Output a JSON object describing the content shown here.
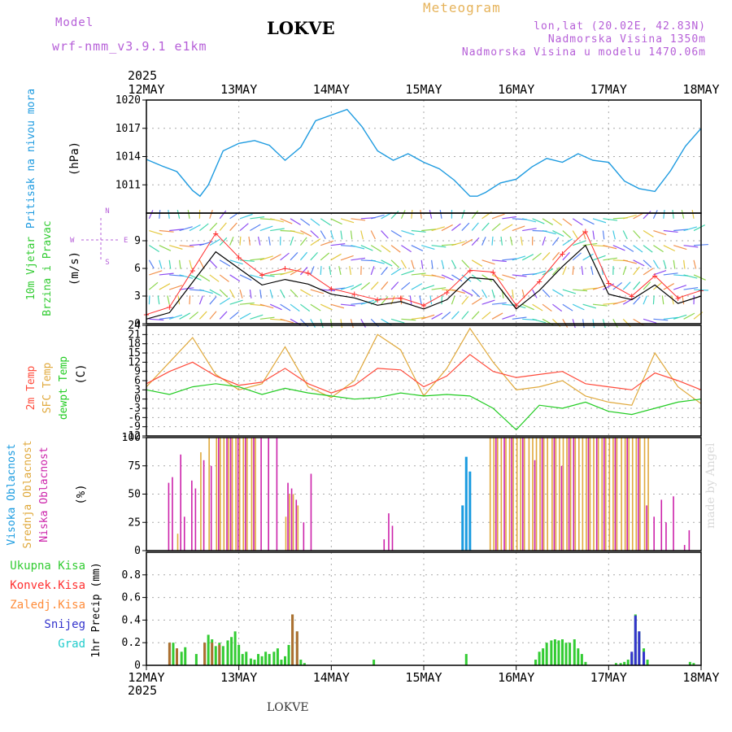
{
  "header": {
    "title": "LOKVE",
    "subtitle": "Meteogram",
    "model_label": "Model",
    "model_value": "wrf-nmm_v3.9.1 e1km",
    "location_coords": "lon,lat (20.02E, 42.83N)",
    "elevation": "Nadmorska Visina 1350m",
    "model_elevation": "Nadmorska Visina u modelu 1470.06m"
  },
  "footer": {
    "station": "LOKVE",
    "credit": "made by Angel"
  },
  "x_axis": {
    "year": "2025",
    "ticks": [
      "12MAY",
      "13MAY",
      "14MAY",
      "15MAY",
      "16MAY",
      "17MAY",
      "18MAY"
    ]
  },
  "colors": {
    "pressure": "#1e9be0",
    "wind_obs": "#000000",
    "wind_max": "#ff3030",
    "temp_2m": "#ff4a3a",
    "temp_sfc": "#e0a93c",
    "dewpoint": "#22cc22",
    "cloud_high": "#1a9be0",
    "cloud_mid": "#e0a93c",
    "cloud_low": "#cc22aa",
    "precip_total": "#33cc33",
    "precip_conv": "#ff3030",
    "precip_frz": "#ff8c3a",
    "snow": "#3333cc",
    "hail": "#22cccc",
    "grid": "#aaaaaa",
    "title": "#b65fd8"
  },
  "panels": {
    "pressure": {
      "label_name": "Pritisak na nivou mora",
      "label_unit": "(hPa)",
      "color": "#1e9be0"
    },
    "wind": {
      "label_name": [
        "10m Vjetar",
        "Brzina i Pravac"
      ],
      "label_unit": "(m/s)",
      "compass_n": "N",
      "compass_w": "W",
      "compass_e": "E",
      "compass_s": "S"
    },
    "temp": {
      "label_2m": "2m Temp",
      "label_sfc": "SFC Temp",
      "label_dew": "dewpt Temp",
      "label_unit": "(C)"
    },
    "cloud": {
      "label_high": "Visoka Oblacnost",
      "label_mid": "Srednja Oblacnost",
      "label_low": "Niska Oblacnost",
      "label_unit": "(%)"
    },
    "precip": {
      "legend": [
        {
          "text": "Ukupna Kisa",
          "color": "#33cc33"
        },
        {
          "text": "Konvek.Kisa",
          "color": "#ff3030"
        },
        {
          "text": "Zaledj.Kisa",
          "color": "#ff8c3a"
        },
        {
          "text": "Snijeg",
          "color": "#3333cc"
        },
        {
          "text": "Grad",
          "color": "#22cccc"
        }
      ],
      "label_unit": "1hr Precip (mm)"
    }
  },
  "chart_data": [
    {
      "type": "line",
      "ylabel": "(hPa)",
      "ylim": [
        1008,
        1020
      ],
      "yticks": [
        1011,
        1014,
        1017,
        1020
      ],
      "x": [
        0,
        0.17,
        0.33,
        0.5,
        0.58,
        0.67,
        0.83,
        1,
        1.17,
        1.33,
        1.5,
        1.67,
        1.83,
        2,
        2.17,
        2.33,
        2.5,
        2.67,
        2.83,
        3,
        3.17,
        3.33,
        3.5,
        3.58,
        3.67,
        3.83,
        4,
        4.17,
        4.33,
        4.5,
        4.67,
        4.83,
        5,
        5.17,
        5.33,
        5.5,
        5.67,
        5.83,
        6
      ],
      "series": [
        {
          "name": "Pritisak na nivou mora",
          "values": [
            1013.7,
            1013.0,
            1012.4,
            1010.4,
            1009.8,
            1011.0,
            1014.6,
            1015.4,
            1015.7,
            1015.2,
            1013.6,
            1015.0,
            1017.8,
            1018.4,
            1019.0,
            1017.2,
            1014.6,
            1013.6,
            1014.3,
            1013.4,
            1012.7,
            1011.5,
            1009.8,
            1009.8,
            1010.2,
            1011.2,
            1011.6,
            1012.9,
            1013.8,
            1013.4,
            1014.3,
            1013.6,
            1013.4,
            1011.4,
            1010.6,
            1010.3,
            1012.5,
            1015.1,
            1017.0
          ]
        }
      ]
    },
    {
      "type": "line",
      "ylabel": "(m/s)",
      "ylim": [
        0,
        12
      ],
      "yticks": [
        0,
        3,
        6,
        9
      ],
      "x": [
        0,
        0.25,
        0.5,
        0.75,
        1,
        1.25,
        1.5,
        1.75,
        2,
        2.25,
        2.5,
        2.75,
        3,
        3.25,
        3.5,
        3.75,
        4,
        4.25,
        4.5,
        4.75,
        5,
        5.25,
        5.5,
        5.75,
        6
      ],
      "series": [
        {
          "name": "mean",
          "values": [
            0.5,
            1.2,
            4.5,
            7.8,
            6.0,
            4.2,
            4.8,
            4.3,
            3.2,
            2.8,
            2.0,
            2.4,
            1.6,
            2.6,
            5.0,
            4.8,
            1.6,
            3.6,
            6.2,
            8.5,
            3.2,
            2.6,
            4.2,
            2.2,
            3.0
          ]
        },
        {
          "name": "gust",
          "values": [
            1.0,
            1.8,
            5.8,
            9.8,
            7.2,
            5.3,
            6.0,
            5.5,
            3.8,
            3.2,
            2.6,
            2.8,
            2.0,
            3.4,
            5.8,
            5.6,
            2.0,
            4.6,
            7.6,
            10.0,
            4.4,
            3.0,
            5.2,
            2.8,
            3.6
          ]
        }
      ]
    },
    {
      "type": "line",
      "ylabel": "(C)",
      "ylim": [
        -12,
        24
      ],
      "yticks": [
        -12,
        -9,
        -6,
        -3,
        0,
        3,
        6,
        9,
        12,
        15,
        18,
        21,
        24
      ],
      "x": [
        0,
        0.25,
        0.5,
        0.75,
        1,
        1.25,
        1.5,
        1.75,
        2,
        2.25,
        2.5,
        2.75,
        3,
        3.25,
        3.5,
        3.75,
        4,
        4.25,
        4.5,
        4.75,
        5,
        5.25,
        5.5,
        5.75,
        6
      ],
      "series": [
        {
          "name": "2m Temp",
          "values": [
            5.0,
            9.0,
            12.0,
            7.5,
            4.5,
            5.5,
            10.0,
            5.0,
            2.0,
            4.5,
            10.0,
            9.5,
            4.0,
            7.5,
            14.5,
            9.0,
            7.0,
            8.0,
            9.0,
            5.0,
            4.0,
            3.0,
            8.5,
            6.0,
            3.0
          ]
        },
        {
          "name": "SFC Temp",
          "values": [
            4.0,
            12.0,
            20.0,
            8.0,
            3.0,
            5.0,
            17.0,
            4.0,
            0.5,
            6.0,
            21.0,
            16.0,
            1.0,
            10.0,
            23.0,
            12.0,
            3.0,
            4.0,
            6.0,
            1.0,
            -1.0,
            -2.0,
            15.0,
            4.0,
            -1.5
          ]
        },
        {
          "name": "dewpt Temp",
          "values": [
            3.0,
            1.5,
            4.0,
            5.0,
            4.0,
            1.5,
            3.5,
            2.0,
            1.0,
            0.0,
            0.5,
            2.0,
            1.0,
            1.5,
            1.0,
            -3.0,
            -10.0,
            -2.0,
            -3.0,
            -1.0,
            -4.0,
            -5.0,
            -3.0,
            -1.0,
            0.0
          ]
        }
      ]
    },
    {
      "type": "bar",
      "ylabel": "(%)",
      "ylim": [
        0,
        100
      ],
      "yticks": [
        0,
        25,
        50,
        75,
        100
      ],
      "series": [
        {
          "name": "Visoka Oblacnost",
          "x": [
            3.42,
            3.46,
            3.5
          ],
          "values": [
            40,
            83,
            70
          ]
        },
        {
          "name": "Srednja Oblacnost",
          "x": [
            0.33,
            0.58,
            0.67,
            0.75,
            0.79,
            0.83,
            0.88,
            0.92,
            0.96,
            1.0,
            1.04,
            1.08,
            1.13,
            1.17,
            1.5,
            1.54,
            1.58,
            1.63,
            3.71,
            3.75,
            3.79,
            3.83,
            3.88,
            3.92,
            3.96,
            4.0,
            4.04,
            4.08,
            4.13,
            4.17,
            4.21,
            4.25,
            4.29,
            4.33,
            4.38,
            4.42,
            4.46,
            4.5,
            4.54,
            4.58,
            4.63,
            4.67,
            4.71,
            4.75,
            4.79,
            4.83,
            4.88,
            4.92,
            4.96,
            5.0,
            5.04,
            5.08,
            5.13,
            5.17,
            5.21,
            5.25,
            5.29,
            5.33,
            5.38,
            5.42
          ],
          "values": [
            15,
            87,
            100,
            100,
            100,
            100,
            100,
            100,
            100,
            100,
            100,
            100,
            100,
            100,
            30,
            50,
            50,
            40,
            100,
            100,
            100,
            100,
            100,
            100,
            100,
            100,
            100,
            100,
            100,
            100,
            100,
            100,
            100,
            100,
            100,
            100,
            100,
            100,
            100,
            100,
            100,
            100,
            100,
            100,
            100,
            100,
            100,
            100,
            100,
            100,
            100,
            100,
            100,
            100,
            100,
            100,
            100,
            100,
            100,
            100
          ]
        },
        {
          "name": "Niska Oblacnost",
          "x": [
            0.25,
            0.29,
            0.38,
            0.42,
            0.5,
            0.54,
            0.63,
            0.71,
            0.79,
            0.88,
            0.92,
            1.0,
            1.08,
            1.17,
            1.25,
            1.33,
            1.42,
            1.54,
            1.58,
            1.63,
            1.71,
            1.79,
            2.58,
            2.63,
            2.67,
            3.79,
            3.88,
            3.96,
            4.08,
            4.21,
            4.29,
            4.42,
            4.5,
            4.58,
            4.63,
            4.79,
            4.88,
            4.96,
            5.08,
            5.21,
            5.33,
            5.42,
            5.5,
            5.58,
            5.63,
            5.71,
            5.83,
            5.88
          ],
          "values": [
            60,
            65,
            85,
            30,
            62,
            55,
            80,
            75,
            100,
            100,
            100,
            100,
            100,
            100,
            100,
            100,
            100,
            60,
            55,
            45,
            25,
            68,
            10,
            33,
            22,
            100,
            100,
            100,
            100,
            80,
            100,
            100,
            75,
            100,
            100,
            100,
            100,
            100,
            100,
            100,
            100,
            40,
            30,
            45,
            25,
            48,
            5,
            18
          ]
        }
      ]
    },
    {
      "type": "bar",
      "ylabel": "1hr Precip (mm)",
      "ylim": [
        0,
        1.0
      ],
      "yticks": [
        0,
        0.2,
        0.4,
        0.6,
        0.8
      ],
      "series": [
        {
          "name": "Ukupna Kisa",
          "x": [
            0.25,
            0.29,
            0.33,
            0.38,
            0.42,
            0.54,
            0.63,
            0.67,
            0.71,
            0.75,
            0.79,
            0.83,
            0.88,
            0.92,
            0.96,
            1.0,
            1.04,
            1.08,
            1.13,
            1.17,
            1.21,
            1.25,
            1.29,
            1.33,
            1.38,
            1.42,
            1.46,
            1.5,
            1.54,
            1.58,
            1.63,
            1.67,
            1.71,
            2.46,
            3.46,
            4.21,
            4.25,
            4.29,
            4.33,
            4.38,
            4.42,
            4.46,
            4.5,
            4.54,
            4.58,
            4.63,
            4.67,
            4.71,
            4.75,
            5.08,
            5.13,
            5.17,
            5.21,
            5.25,
            5.29,
            5.33,
            5.38,
            5.42,
            5.88,
            5.92
          ],
          "values": [
            0.2,
            0.2,
            0.15,
            0.12,
            0.16,
            0.1,
            0.2,
            0.27,
            0.23,
            0.17,
            0.2,
            0.17,
            0.22,
            0.25,
            0.3,
            0.18,
            0.1,
            0.12,
            0.06,
            0.05,
            0.1,
            0.08,
            0.12,
            0.1,
            0.12,
            0.15,
            0.05,
            0.08,
            0.18,
            0.45,
            0.3,
            0.05,
            0.02,
            0.05,
            0.1,
            0.05,
            0.12,
            0.15,
            0.2,
            0.22,
            0.23,
            0.22,
            0.23,
            0.2,
            0.2,
            0.23,
            0.15,
            0.1,
            0.03,
            0.02,
            0.02,
            0.03,
            0.05,
            0.1,
            0.45,
            0.3,
            0.15,
            0.05,
            0.03,
            0.02
          ]
        },
        {
          "name": "Konvek.Kisa",
          "x": [
            0.25,
            0.33,
            0.63,
            0.71,
            0.79,
            1.58,
            1.63
          ],
          "values": [
            0.2,
            0.15,
            0.2,
            0.2,
            0.18,
            0.45,
            0.3
          ]
        },
        {
          "name": "Snijeg",
          "x": [
            5.25,
            5.29,
            5.33,
            5.38
          ],
          "values": [
            0.12,
            0.44,
            0.3,
            0.12
          ]
        }
      ]
    }
  ]
}
